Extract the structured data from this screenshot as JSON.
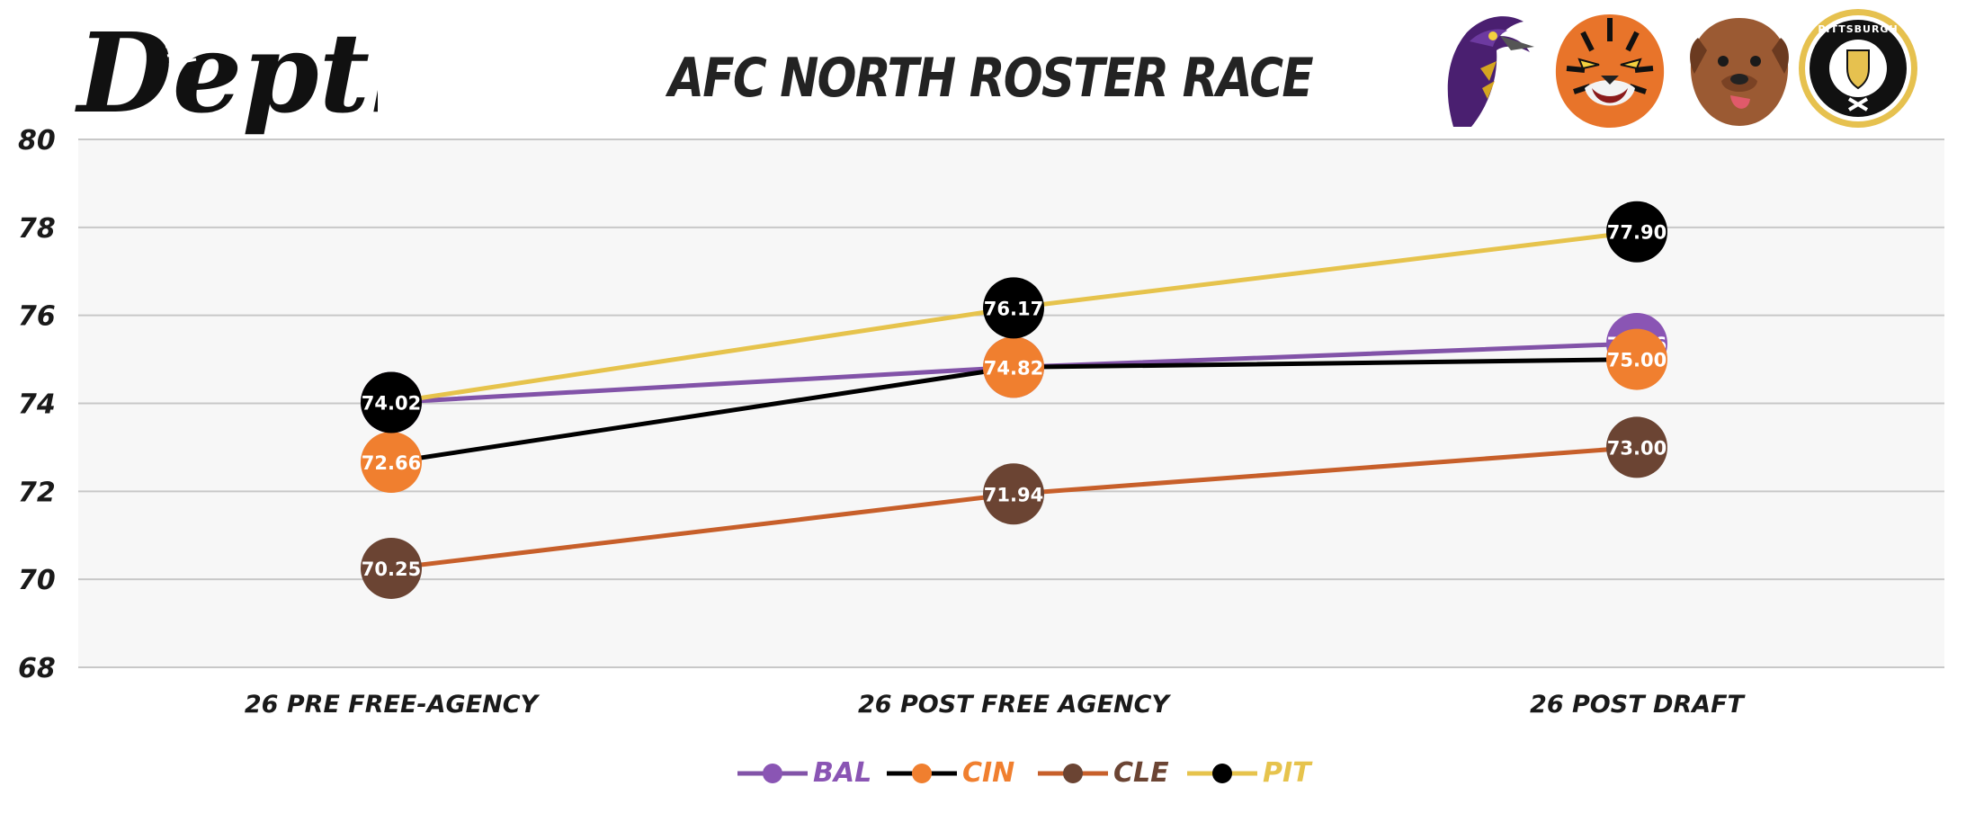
{
  "header": {
    "brand": "Depth",
    "title": "AFC NORTH ROSTER RACE"
  },
  "mascots": [
    {
      "name": "raven-mascot-icon",
      "primary": "#5b2a86"
    },
    {
      "name": "tiger-mascot-icon",
      "primary": "#e8742a"
    },
    {
      "name": "dog-mascot-icon",
      "primary": "#9b5a33"
    },
    {
      "name": "pittsburgh-seal-icon",
      "primary": "#e6c14f",
      "text": "PITTSBURGH"
    }
  ],
  "colors": {
    "BAL_line": "#8253a8",
    "CIN_line": "#000000",
    "CLE_line": "#c75f2a",
    "PIT_line": "#e6c34c",
    "BAL_marker": "#8a55b4",
    "CIN_marker": "#f07f2f",
    "CLE_marker": "#6b4433",
    "PIT_marker": "#000000",
    "plot_bg": "#f7f7f7",
    "grid": "#c8c8c8"
  },
  "chart_data": {
    "type": "line",
    "title": "AFC NORTH ROSTER RACE",
    "categories": [
      "26 PRE FREE-AGENCY",
      "26 POST FREE AGENCY",
      "26 POST DRAFT"
    ],
    "ylim": [
      68,
      80
    ],
    "yticks": [
      "68",
      "70",
      "72",
      "74",
      "76",
      "78",
      "80"
    ],
    "grid": true,
    "legend_position": "bottom",
    "series": [
      {
        "name": "BAL",
        "values": [
          74.02,
          74.82,
          75.36
        ],
        "labels": [
          "74.02",
          "74.82",
          "75.36"
        ]
      },
      {
        "name": "CIN",
        "values": [
          72.66,
          74.82,
          75.0
        ],
        "labels": [
          "72.66",
          "74.82",
          "75.00"
        ]
      },
      {
        "name": "CLE",
        "values": [
          70.25,
          71.94,
          73.0
        ],
        "labels": [
          "70.25",
          "71.94",
          "73.00"
        ]
      },
      {
        "name": "PIT",
        "values": [
          74.02,
          76.17,
          77.9
        ],
        "labels": [
          "74.02",
          "76.17",
          "77.90"
        ]
      }
    ]
  }
}
